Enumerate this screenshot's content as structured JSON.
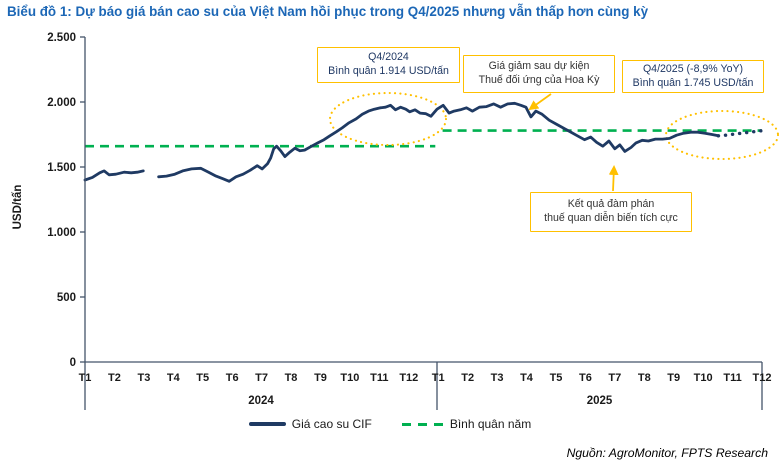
{
  "title": "Biểu đồ 1: Dự báo giá bán cao su của Việt Nam hồi phục trong Q4/2025 nhưng vẫn thấp hơn cùng kỳ",
  "source": "Nguồn: AgroMonitor, FPTS Research",
  "chart_data": {
    "type": "line",
    "ylabel": "USD/tấn",
    "ylim": [
      0,
      2500
    ],
    "yticks": [
      0,
      500,
      1000,
      1500,
      2000,
      2500
    ],
    "ytick_labels": [
      "0",
      "500",
      "1.000",
      "1.500",
      "2.000",
      "2.500"
    ],
    "months_2024": [
      "T1",
      "T2",
      "T3",
      "T4",
      "T5",
      "T6",
      "T7",
      "T8",
      "T9",
      "T10",
      "T11",
      "T12"
    ],
    "months_2025": [
      "T1",
      "T2",
      "T3",
      "T4",
      "T5",
      "T6",
      "T7",
      "T8",
      "T9",
      "T10",
      "T11",
      "T12"
    ],
    "years": [
      "2024",
      "2025"
    ],
    "grid": "off",
    "legend_position": "bottom",
    "highlight_color": "#ffc000",
    "axis_color": "#44546a",
    "legend": [
      {
        "label": "Giá cao su CIF",
        "style": "solid",
        "color": "#1f3a63"
      },
      {
        "label": "Bình quân năm",
        "style": "dashed",
        "color": "#00b050"
      }
    ],
    "series": {
      "cif_actual": {
        "name": "Giá cao su CIF",
        "color": "#1f3a63",
        "unit": "USD/tấn",
        "x_unit": "month index, 0 = T1/2024, 23 = T12/2025",
        "segments": [
          [
            [
              0.0,
              1400
            ],
            [
              0.25,
              1420
            ],
            [
              0.5,
              1455
            ],
            [
              0.65,
              1470
            ],
            [
              0.82,
              1440
            ],
            [
              1.05,
              1445
            ],
            [
              1.33,
              1460
            ],
            [
              1.57,
              1455
            ],
            [
              1.78,
              1460
            ],
            [
              1.98,
              1470
            ]
          ],
          [
            [
              2.5,
              1425
            ],
            [
              2.77,
              1430
            ],
            [
              3.05,
              1445
            ],
            [
              3.32,
              1470
            ],
            [
              3.62,
              1485
            ],
            [
              3.93,
              1490
            ],
            [
              4.2,
              1460
            ],
            [
              4.45,
              1430
            ],
            [
              4.68,
              1410
            ],
            [
              4.9,
              1390
            ],
            [
              5.13,
              1425
            ],
            [
              5.37,
              1445
            ],
            [
              5.61,
              1475
            ],
            [
              5.85,
              1510
            ],
            [
              6.02,
              1485
            ],
            [
              6.2,
              1525
            ],
            [
              6.31,
              1570
            ],
            [
              6.41,
              1640
            ],
            [
              6.51,
              1660
            ],
            [
              6.65,
              1625
            ],
            [
              6.79,
              1580
            ],
            [
              6.96,
              1615
            ],
            [
              7.13,
              1645
            ],
            [
              7.3,
              1625
            ],
            [
              7.46,
              1630
            ],
            [
              7.7,
              1660
            ],
            [
              7.91,
              1685
            ],
            [
              8.12,
              1710
            ],
            [
              8.32,
              1740
            ],
            [
              8.53,
              1770
            ],
            [
              8.73,
              1800
            ],
            [
              8.97,
              1840
            ],
            [
              9.21,
              1870
            ],
            [
              9.42,
              1905
            ],
            [
              9.63,
              1930
            ],
            [
              9.83,
              1945
            ],
            [
              10.04,
              1955
            ],
            [
              10.21,
              1960
            ],
            [
              10.38,
              1975
            ],
            [
              10.55,
              1940
            ],
            [
              10.72,
              1960
            ],
            [
              10.9,
              1945
            ],
            [
              11.03,
              1925
            ],
            [
              11.21,
              1940
            ],
            [
              11.38,
              1915
            ],
            [
              11.58,
              1910
            ],
            [
              11.75,
              1890
            ],
            [
              11.96,
              1945
            ],
            [
              12.17,
              1975
            ],
            [
              12.37,
              1915
            ],
            [
              12.54,
              1930
            ],
            [
              12.75,
              1940
            ],
            [
              12.96,
              1955
            ],
            [
              13.16,
              1930
            ],
            [
              13.4,
              1960
            ],
            [
              13.64,
              1965
            ],
            [
              13.88,
              1985
            ],
            [
              14.12,
              1960
            ],
            [
              14.36,
              1985
            ],
            [
              14.6,
              1990
            ],
            [
              14.81,
              1975
            ],
            [
              14.98,
              1960
            ],
            [
              15.15,
              1885
            ],
            [
              15.32,
              1930
            ],
            [
              15.53,
              1905
            ],
            [
              15.77,
              1860
            ],
            [
              16.01,
              1830
            ],
            [
              16.25,
              1800
            ],
            [
              16.49,
              1770
            ],
            [
              16.73,
              1740
            ],
            [
              16.97,
              1710
            ],
            [
              17.18,
              1730
            ],
            [
              17.38,
              1690
            ],
            [
              17.59,
              1660
            ],
            [
              17.8,
              1700
            ],
            [
              18.0,
              1640
            ],
            [
              18.17,
              1670
            ],
            [
              18.34,
              1620
            ],
            [
              18.55,
              1650
            ],
            [
              18.72,
              1685
            ],
            [
              18.93,
              1705
            ],
            [
              19.14,
              1700
            ],
            [
              19.38,
              1715
            ],
            [
              19.62,
              1715
            ],
            [
              19.86,
              1720
            ],
            [
              20.1,
              1745
            ],
            [
              20.34,
              1760
            ],
            [
              20.58,
              1768
            ],
            [
              20.82,
              1768
            ],
            [
              21.06,
              1760
            ],
            [
              21.3,
              1750
            ],
            [
              21.52,
              1740
            ]
          ]
        ]
      },
      "cif_forecast": {
        "name": "Giá cao su CIF (dự báo Q4/2025)",
        "color": "#1f3a63",
        "points": [
          [
            21.52,
            1740
          ],
          [
            21.75,
            1745
          ],
          [
            22.02,
            1752
          ],
          [
            22.3,
            1760
          ],
          [
            22.57,
            1768
          ],
          [
            22.84,
            1775
          ],
          [
            23.08,
            1782
          ]
        ]
      },
      "annual_average": {
        "name": "Bình quân năm",
        "color": "#00b050",
        "segments": [
          {
            "year": "2024",
            "value": 1660,
            "from": 0,
            "to": 11.9
          },
          {
            "year": "2025",
            "value": 1780,
            "from": 12.15,
            "to": 23.0
          }
        ]
      }
    },
    "annotations": [
      {
        "id": "q4-2024",
        "line1": "Q4/2024",
        "line2": "Bình quân 1.914 USD/tấn"
      },
      {
        "id": "tariff-event",
        "line1": "Giá giảm sau dự kiện",
        "line2": "Thuế đối ứng của Hoa Kỳ"
      },
      {
        "id": "q4-2025",
        "line1": "Q4/2025 (-8,9% YoY)",
        "line2": "Bình quân 1.745 USD/tấn"
      },
      {
        "id": "negotiation",
        "line1": "Kết quả đàm phán",
        "line2": "thuế quan diễn biến tích cực"
      }
    ]
  }
}
